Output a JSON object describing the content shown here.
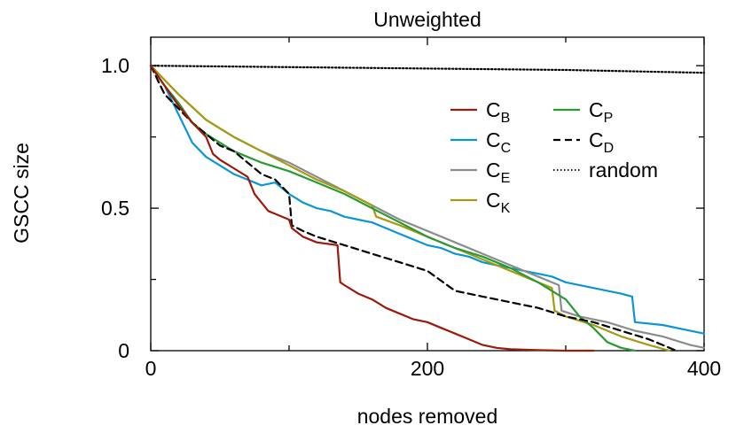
{
  "chart_data": {
    "type": "line",
    "title": "Unweighted",
    "xlabel": "nodes removed",
    "ylabel": "GSCC size",
    "xlim": [
      0,
      400
    ],
    "ylim": [
      0,
      1.1
    ],
    "xticks": [
      0,
      200,
      400
    ],
    "xtick_labels": [
      "0",
      "200",
      "400"
    ],
    "yticks": [
      0,
      0.5,
      1.0
    ],
    "ytick_labels": [
      "0",
      "0.5",
      "1.0"
    ],
    "grid": false,
    "legend_position": "top-right",
    "series": [
      {
        "name": "C",
        "sub": "B",
        "color": "#9b1a0a",
        "dash": "",
        "x": [
          0,
          10,
          20,
          30,
          40,
          45,
          50,
          60,
          70,
          75,
          80,
          85,
          90,
          100,
          102,
          110,
          120,
          135,
          137,
          140,
          150,
          160,
          170,
          180,
          190,
          200,
          210,
          220,
          230,
          240,
          250,
          260,
          280,
          300,
          320
        ],
        "y": [
          1.0,
          0.93,
          0.86,
          0.8,
          0.75,
          0.69,
          0.67,
          0.64,
          0.61,
          0.55,
          0.52,
          0.49,
          0.48,
          0.46,
          0.43,
          0.4,
          0.38,
          0.37,
          0.24,
          0.23,
          0.2,
          0.18,
          0.15,
          0.13,
          0.11,
          0.1,
          0.08,
          0.06,
          0.04,
          0.02,
          0.01,
          0.005,
          0.002,
          0.0,
          0.0
        ]
      },
      {
        "name": "C",
        "sub": "C",
        "color": "#0a96d6",
        "dash": "",
        "x": [
          0,
          10,
          20,
          30,
          40,
          50,
          60,
          70,
          80,
          90,
          100,
          110,
          120,
          130,
          140,
          150,
          160,
          170,
          180,
          190,
          200,
          210,
          220,
          230,
          240,
          250,
          260,
          270,
          280,
          290,
          300,
          320,
          340,
          348,
          350,
          370,
          400
        ],
        "y": [
          1.0,
          0.93,
          0.83,
          0.73,
          0.68,
          0.65,
          0.62,
          0.6,
          0.58,
          0.59,
          0.55,
          0.52,
          0.5,
          0.49,
          0.47,
          0.46,
          0.45,
          0.43,
          0.41,
          0.39,
          0.37,
          0.36,
          0.34,
          0.33,
          0.31,
          0.3,
          0.29,
          0.28,
          0.27,
          0.26,
          0.24,
          0.22,
          0.2,
          0.19,
          0.1,
          0.09,
          0.06
        ]
      },
      {
        "name": "C",
        "sub": "E",
        "color": "#8c8c8c",
        "dash": "",
        "x": [
          0,
          20,
          40,
          60,
          80,
          100,
          120,
          140,
          160,
          180,
          200,
          220,
          240,
          260,
          280,
          295,
          297,
          310,
          330,
          350,
          370,
          390,
          400
        ],
        "y": [
          1.0,
          0.9,
          0.81,
          0.75,
          0.7,
          0.66,
          0.61,
          0.56,
          0.51,
          0.46,
          0.42,
          0.38,
          0.34,
          0.3,
          0.26,
          0.23,
          0.14,
          0.12,
          0.1,
          0.07,
          0.05,
          0.02,
          0.01
        ]
      },
      {
        "name": "C",
        "sub": "K",
        "color": "#a59a10",
        "dash": "",
        "x": [
          0,
          20,
          40,
          60,
          80,
          100,
          120,
          140,
          160,
          163,
          180,
          200,
          220,
          240,
          260,
          280,
          290,
          292,
          300,
          320,
          340,
          360,
          375
        ],
        "y": [
          1.0,
          0.9,
          0.81,
          0.75,
          0.7,
          0.65,
          0.6,
          0.56,
          0.51,
          0.47,
          0.44,
          0.4,
          0.36,
          0.32,
          0.28,
          0.24,
          0.22,
          0.14,
          0.12,
          0.09,
          0.05,
          0.02,
          0.0
        ]
      },
      {
        "name": "C",
        "sub": "P",
        "color": "#2a9a32",
        "dash": "",
        "x": [
          0,
          10,
          20,
          30,
          40,
          50,
          60,
          80,
          100,
          120,
          140,
          160,
          180,
          200,
          220,
          240,
          260,
          280,
          300,
          310,
          320,
          330,
          340,
          350
        ],
        "y": [
          1.0,
          0.93,
          0.87,
          0.8,
          0.76,
          0.73,
          0.7,
          0.66,
          0.63,
          0.59,
          0.55,
          0.5,
          0.45,
          0.4,
          0.36,
          0.33,
          0.29,
          0.24,
          0.18,
          0.12,
          0.08,
          0.03,
          0.01,
          0.0
        ]
      },
      {
        "name": "C",
        "sub": "D",
        "color": "#000000",
        "dash": "8,5",
        "x": [
          0,
          10,
          20,
          30,
          40,
          50,
          60,
          70,
          80,
          90,
          100,
          102,
          110,
          120,
          140,
          160,
          180,
          200,
          220,
          240,
          260,
          280,
          300,
          320,
          340,
          360,
          375,
          380
        ],
        "y": [
          1.0,
          0.9,
          0.85,
          0.8,
          0.76,
          0.72,
          0.7,
          0.66,
          0.62,
          0.6,
          0.55,
          0.44,
          0.42,
          0.4,
          0.37,
          0.34,
          0.31,
          0.28,
          0.21,
          0.19,
          0.17,
          0.15,
          0.12,
          0.1,
          0.07,
          0.04,
          0.01,
          0.0
        ]
      },
      {
        "name": "random",
        "sub": "",
        "color": "#000000",
        "dash": "1.5,2.5",
        "x": [
          0,
          100,
          200,
          300,
          400
        ],
        "y": [
          1.0,
          0.995,
          0.99,
          0.985,
          0.975
        ]
      }
    ]
  }
}
